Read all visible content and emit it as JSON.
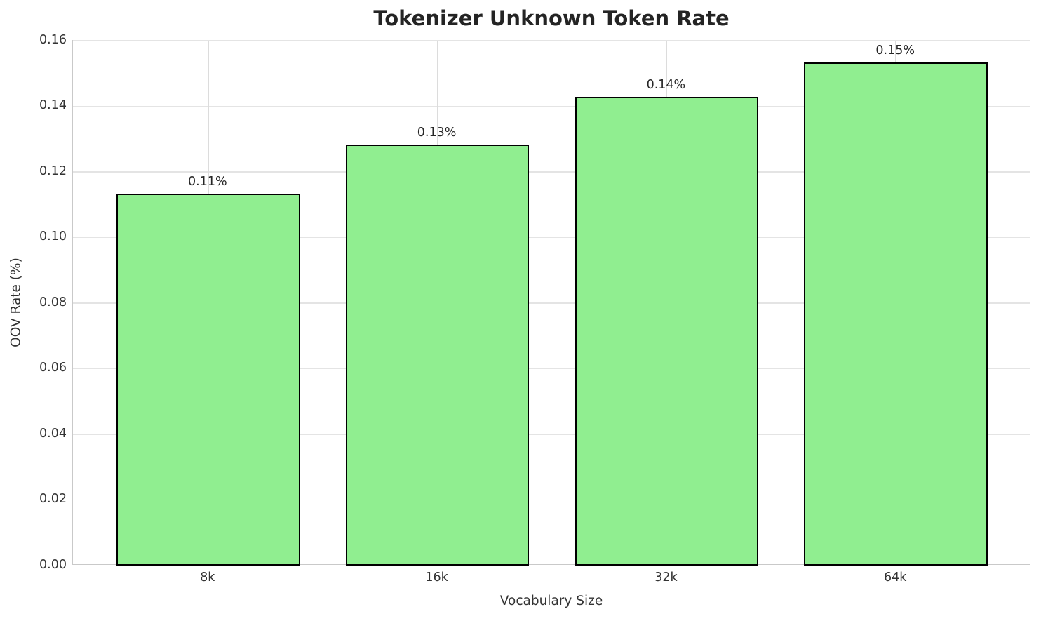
{
  "chart_data": {
    "type": "bar",
    "title": "Tokenizer Unknown Token Rate",
    "xlabel": "Vocabulary Size",
    "ylabel": "OOV Rate (%)",
    "categories": [
      "8k",
      "16k",
      "32k",
      "64k"
    ],
    "values": [
      0.1134,
      0.1283,
      0.1429,
      0.1534
    ],
    "bar_labels": [
      "0.11%",
      "0.13%",
      "0.14%",
      "0.15%"
    ],
    "ylim": [
      0,
      0.16
    ],
    "ytick_values": [
      0.0,
      0.02,
      0.04,
      0.06,
      0.08,
      0.1,
      0.12,
      0.14,
      0.16
    ],
    "ytick_labels": [
      "0.00",
      "0.02",
      "0.04",
      "0.06",
      "0.08",
      "0.10",
      "0.12",
      "0.14",
      "0.16"
    ],
    "grid": true,
    "legend_position": "none",
    "colors": {
      "bar_fill": "#90EE90",
      "bar_edge": "#000000",
      "grid_h": "#e4e4e4",
      "grid_v": "#dcdcdc",
      "spine": "#c9c9c9",
      "tick_text": "#333333",
      "title_text": "#242424"
    }
  }
}
